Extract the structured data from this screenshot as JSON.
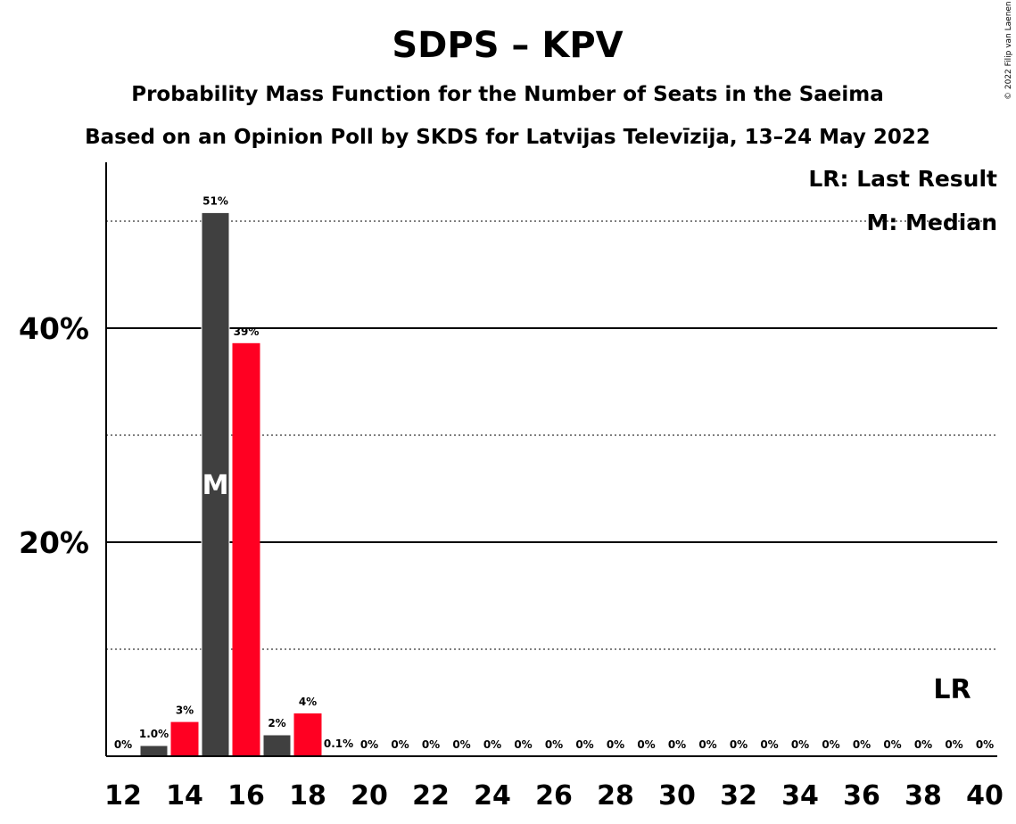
{
  "chart_data": {
    "type": "bar",
    "title": "SDPS – KPV",
    "subtitle": "Probability Mass Function for the Number of Seats in the Saeima",
    "subtitle2": "Based on an Opinion Poll by SKDS for Latvijas Televīzija, 13–24 May 2022",
    "copyright": "© 2022 Filip van Laenen",
    "legend": [
      "LR: Last Result",
      "M: Median"
    ],
    "legend_position": "top-right",
    "x": [
      12,
      13,
      14,
      15,
      16,
      17,
      18,
      19,
      20,
      21,
      22,
      23,
      24,
      25,
      26,
      27,
      28,
      29,
      30,
      31,
      32,
      33,
      34,
      35,
      36,
      37,
      38,
      39,
      40
    ],
    "values": [
      0,
      1.0,
      3.2,
      50.8,
      38.6,
      2.0,
      4.0,
      0.1,
      0,
      0,
      0,
      0,
      0,
      0,
      0,
      0,
      0,
      0,
      0,
      0,
      0,
      0,
      0,
      0,
      0,
      0,
      0,
      0,
      0
    ],
    "labels": [
      "0%",
      "1.0%",
      "3%",
      "51%",
      "39%",
      "2%",
      "4%",
      "0.1%",
      "0%",
      "0%",
      "0%",
      "0%",
      "0%",
      "0%",
      "0%",
      "0%",
      "0%",
      "0%",
      "0%",
      "0%",
      "0%",
      "0%",
      "0%",
      "0%",
      "0%",
      "0%",
      "0%",
      "0%",
      "0%"
    ],
    "bar_colors": {
      "even": "#FF0022",
      "odd": "#404040"
    },
    "xticks": [
      "12",
      "14",
      "16",
      "18",
      "20",
      "22",
      "24",
      "26",
      "28",
      "30",
      "32",
      "34",
      "36",
      "38",
      "40"
    ],
    "yticks": [
      "20%",
      "40%"
    ],
    "ytick_values": [
      20,
      40
    ],
    "minor_gridlines": [
      10,
      30,
      50
    ],
    "ylim": [
      0,
      55
    ],
    "median": {
      "seats": 15,
      "label": "M"
    },
    "last_result": {
      "seats": 39,
      "label": "LR"
    }
  }
}
